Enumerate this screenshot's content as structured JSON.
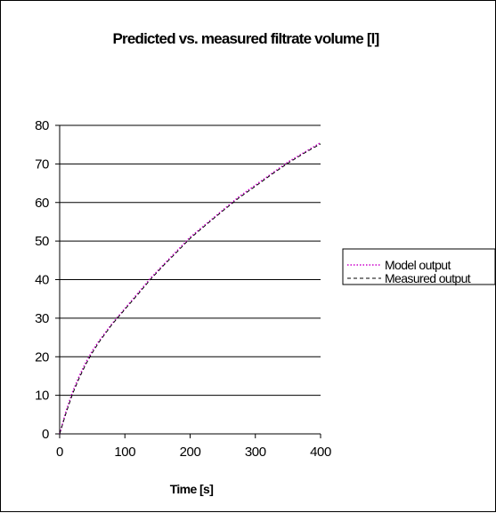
{
  "chart_data": {
    "type": "line",
    "title": "Predicted vs. measured filtrate volume [l]",
    "xlabel": "Time [s]",
    "ylabel": "",
    "xlim": [
      0,
      400
    ],
    "ylim": [
      0,
      80
    ],
    "x_ticks": [
      "0",
      "100",
      "200",
      "300",
      "400"
    ],
    "y_ticks": [
      "0",
      "10",
      "20",
      "30",
      "40",
      "50",
      "60",
      "70",
      "80"
    ],
    "grid": "horizontal",
    "legend_position": "right",
    "series": [
      {
        "name": "Model output",
        "color": "#cc00cc",
        "style": "dotted",
        "x": [
          0,
          10,
          20,
          30,
          40,
          50,
          60,
          80,
          100,
          120,
          140,
          160,
          180,
          200,
          225,
          250,
          275,
          300,
          325,
          350,
          375,
          400
        ],
        "y": [
          0,
          6,
          11,
          15,
          18.5,
          21.5,
          24,
          28.5,
          32.5,
          36.5,
          40.5,
          44,
          47.5,
          51,
          54.5,
          58,
          61.5,
          64.5,
          67.5,
          70.5,
          73,
          75.5
        ]
      },
      {
        "name": "Measured output",
        "color": "#000000",
        "style": "dashed",
        "x": [
          0,
          10,
          20,
          30,
          40,
          50,
          60,
          80,
          100,
          120,
          140,
          160,
          180,
          200,
          225,
          250,
          275,
          300,
          325,
          350,
          375,
          400
        ],
        "y": [
          0,
          5.5,
          10.5,
          14.5,
          18,
          21,
          23.7,
          28.3,
          32.3,
          36.2,
          40.2,
          43.8,
          47.2,
          50.7,
          54.3,
          57.8,
          61.2,
          64.2,
          67.3,
          70.2,
          72.8,
          75.2
        ]
      }
    ]
  }
}
